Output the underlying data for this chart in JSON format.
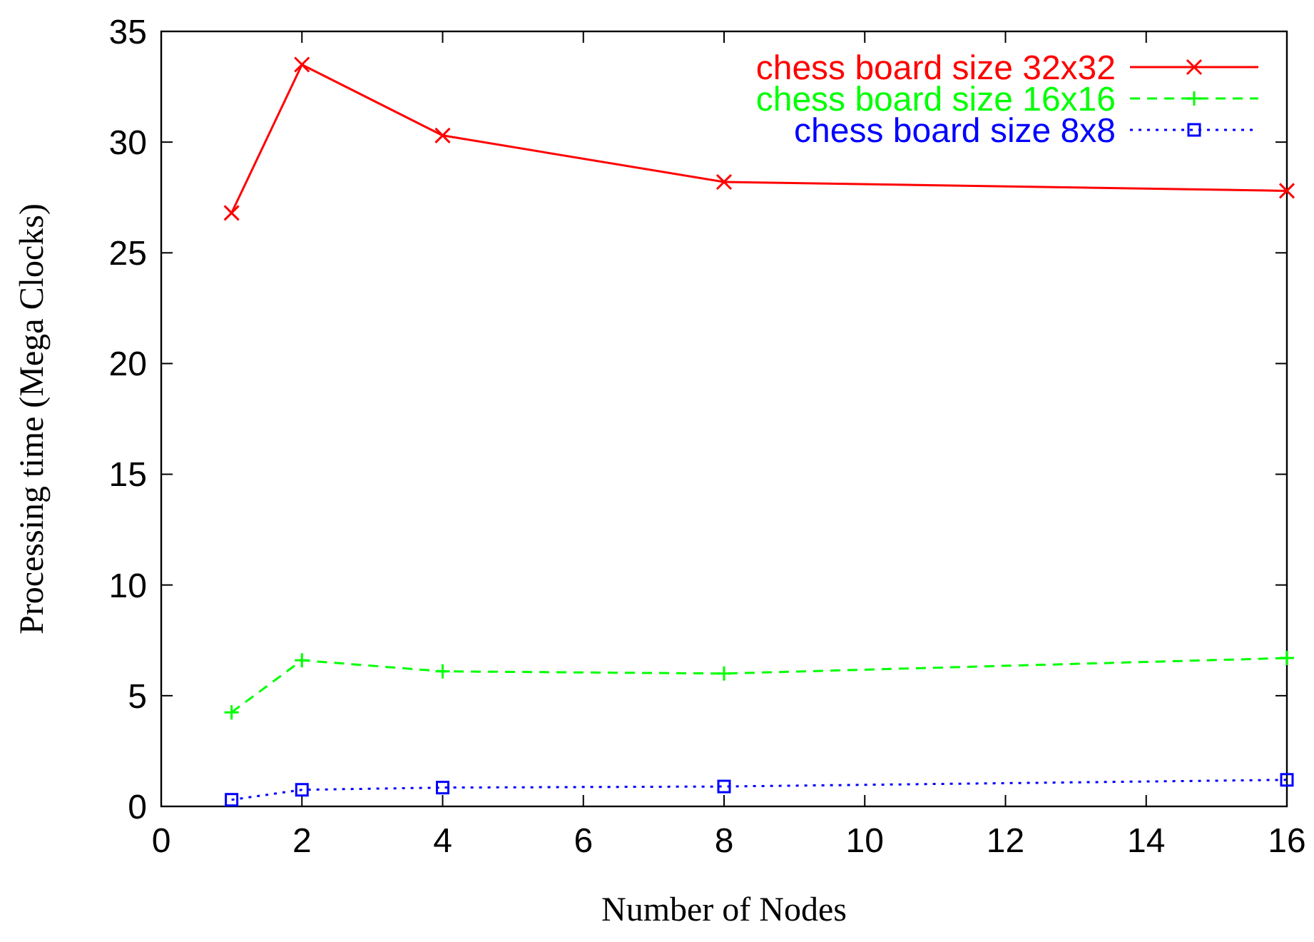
{
  "chart_data": {
    "type": "line",
    "xlabel": "Number of Nodes",
    "ylabel": "Processing time (Mega Clocks)",
    "x": [
      1,
      2,
      4,
      8,
      16
    ],
    "series": [
      {
        "name": "chess board size 32x32",
        "color": "#ff0000",
        "marker": "cross",
        "line_style": "solid",
        "values": [
          26.8,
          33.5,
          30.3,
          28.2,
          27.8
        ]
      },
      {
        "name": "chess board size 16x16",
        "color": "#00ff00",
        "marker": "plus",
        "line_style": "dashed",
        "values": [
          4.25,
          6.6,
          6.1,
          6.0,
          6.7
        ]
      },
      {
        "name": "chess board size 8x8",
        "color": "#0000ff",
        "marker": "square",
        "line_style": "dotted",
        "values": [
          0.3,
          0.75,
          0.85,
          0.9,
          1.2
        ]
      }
    ],
    "xlim": [
      0,
      16
    ],
    "xticks": [
      0,
      2,
      4,
      6,
      8,
      10,
      12,
      14,
      16
    ],
    "ylim": [
      0,
      35
    ],
    "yticks": [
      0,
      5,
      10,
      15,
      20,
      25,
      30,
      35
    ],
    "grid": false,
    "legend": "top right"
  }
}
